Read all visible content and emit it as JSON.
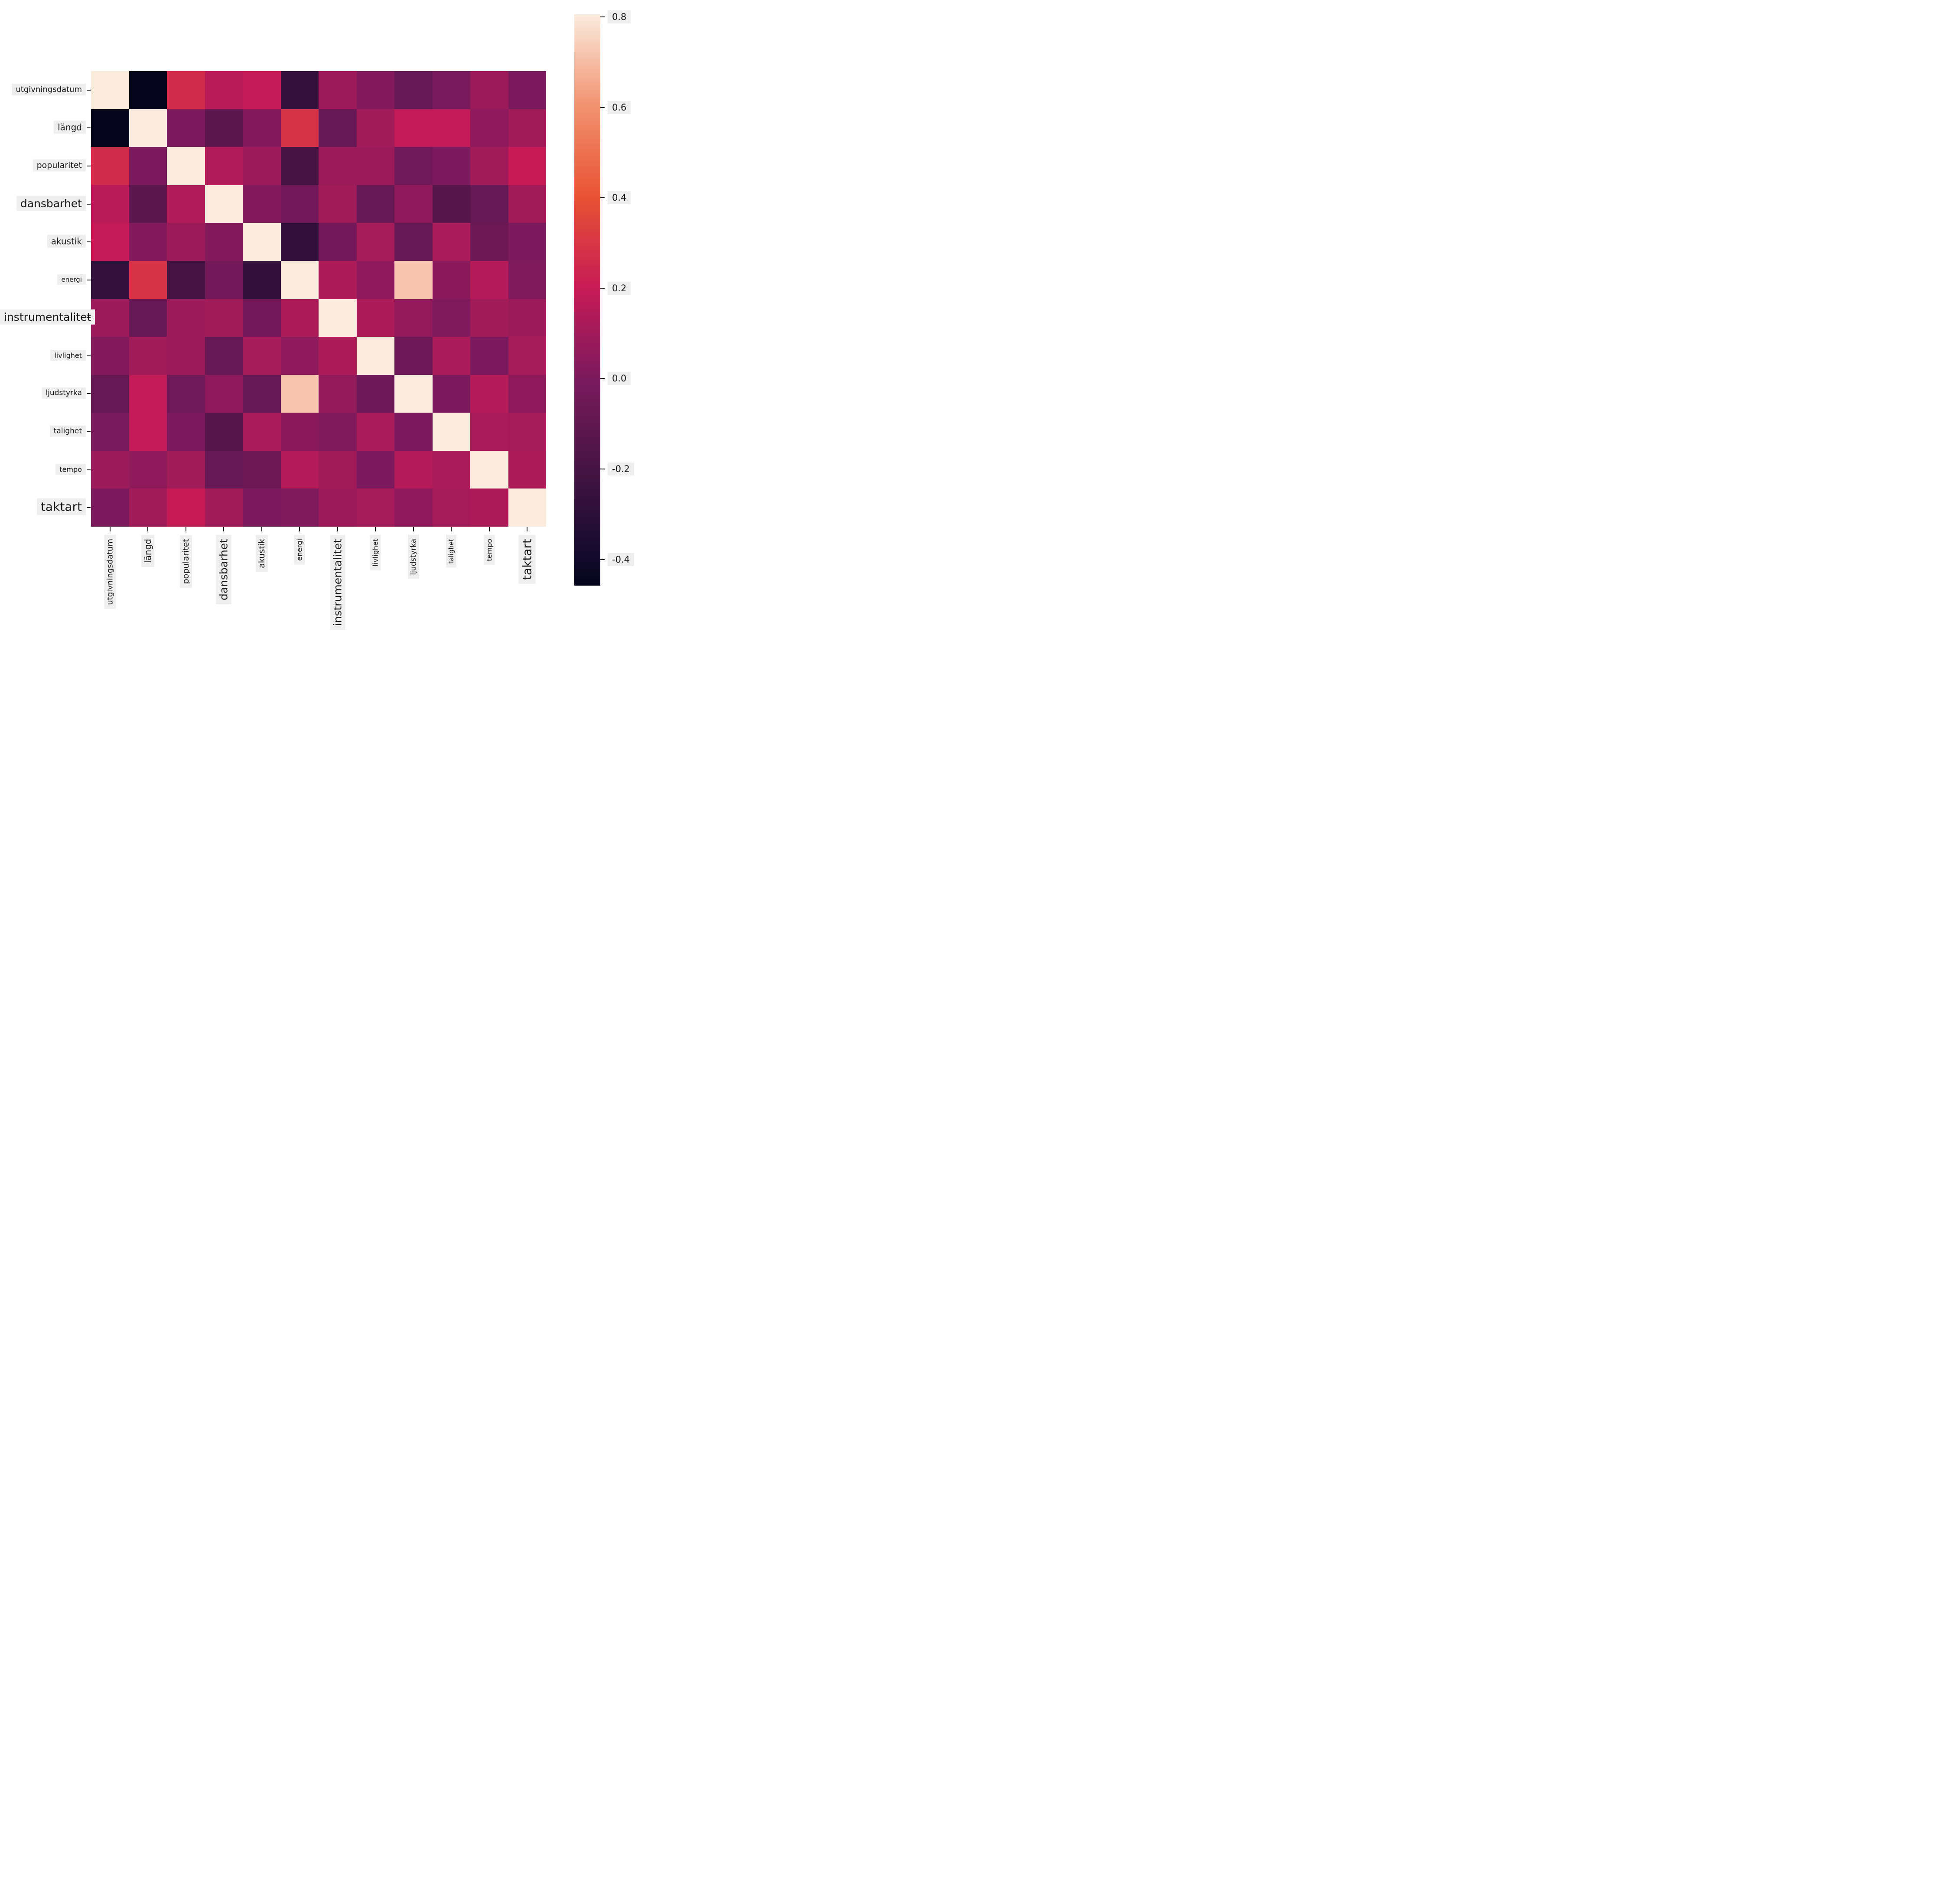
{
  "chart_data": {
    "type": "heatmap",
    "title": "",
    "description": "Correlation matrix of Spotify audio features (Swedish labels), seaborn rocket colormap",
    "variables": [
      "utgivningsdatum",
      "längd",
      "popularitet",
      "dansbarhet",
      "akustik",
      "energi",
      "instrumentalitet",
      "livlighet",
      "ljudstyrka",
      "talighet",
      "tempo",
      "taktart"
    ],
    "matrix": [
      [
        1.0,
        -0.45,
        0.26,
        0.16,
        0.19,
        -0.27,
        0.09,
        0.02,
        -0.08,
        -0.01,
        0.08,
        0.0
      ],
      [
        -0.45,
        1.0,
        0.0,
        -0.11,
        0.02,
        0.29,
        -0.08,
        0.1,
        0.19,
        0.19,
        0.05,
        0.1
      ],
      [
        0.26,
        0.0,
        1.0,
        0.14,
        0.09,
        -0.2,
        0.08,
        0.08,
        -0.04,
        0.0,
        0.1,
        0.2
      ],
      [
        0.16,
        -0.11,
        0.14,
        1.0,
        0.02,
        -0.03,
        0.1,
        -0.08,
        0.05,
        -0.14,
        -0.08,
        0.1
      ],
      [
        0.19,
        0.02,
        0.09,
        0.02,
        1.0,
        -0.28,
        -0.03,
        0.11,
        -0.08,
        0.12,
        -0.06,
        0.0
      ],
      [
        -0.27,
        0.29,
        -0.2,
        -0.03,
        -0.28,
        1.0,
        0.13,
        0.05,
        0.72,
        0.04,
        0.15,
        0.01
      ],
      [
        0.09,
        -0.08,
        0.08,
        0.1,
        -0.03,
        0.13,
        1.0,
        0.13,
        0.06,
        0.01,
        0.1,
        0.08
      ],
      [
        0.02,
        0.1,
        0.08,
        -0.08,
        0.11,
        0.05,
        0.13,
        1.0,
        -0.05,
        0.12,
        0.0,
        0.11
      ],
      [
        -0.08,
        0.19,
        -0.04,
        0.05,
        -0.08,
        0.72,
        0.06,
        -0.05,
        1.0,
        0.0,
        0.15,
        0.05
      ],
      [
        -0.01,
        0.19,
        0.0,
        -0.14,
        0.12,
        0.04,
        0.01,
        0.12,
        0.0,
        1.0,
        0.12,
        0.11
      ],
      [
        0.08,
        0.05,
        0.1,
        -0.08,
        -0.06,
        0.15,
        0.1,
        0.0,
        0.15,
        0.12,
        1.0,
        0.13
      ],
      [
        0.0,
        0.1,
        0.2,
        0.1,
        0.0,
        0.01,
        0.08,
        0.11,
        0.05,
        0.11,
        0.13,
        1.0
      ]
    ],
    "colormap": "rocket",
    "vmin": -0.458,
    "vmax": 0.806,
    "grid": false,
    "legend_position": "right",
    "colorbar_ticks": [
      {
        "label": "0.8",
        "value": 0.8
      },
      {
        "label": "0.6",
        "value": 0.6
      },
      {
        "label": "0.4",
        "value": 0.4
      },
      {
        "label": "0.2",
        "value": 0.2
      },
      {
        "label": "0.0",
        "value": 0.0
      },
      {
        "label": "-0.2",
        "value": -0.2
      },
      {
        "label": "-0.4",
        "value": -0.4
      }
    ]
  },
  "colors": {
    "background": "#ffffff",
    "label_chip_bg": "#efefef",
    "label_text": "#1a1a1a",
    "tick_color": "#1a1a1a",
    "rocket_stops": [
      {
        "t": 0.0,
        "hex": "#03051A"
      },
      {
        "t": 0.05,
        "hex": "#130A2C"
      },
      {
        "t": 0.2,
        "hex": "#441442"
      },
      {
        "t": 0.36,
        "hex": "#7A1A5D"
      },
      {
        "t": 0.52,
        "hex": "#C71B56"
      },
      {
        "t": 0.68,
        "hex": "#E85233"
      },
      {
        "t": 0.84,
        "hex": "#F29270"
      },
      {
        "t": 1.0,
        "hex": "#FAEBDD"
      }
    ]
  }
}
